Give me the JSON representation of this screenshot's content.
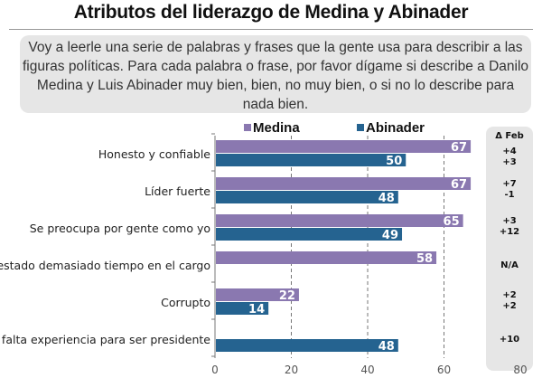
{
  "title": "Atributos del liderazgo de Medina y Abinader",
  "question": "Voy a leerle una serie de palabras y frases que la gente usa para describir a las figuras políticas. Para cada palabra o frase, por favor dígame si describe a Danilo Medina y Luis Abinader muy bien, bien, no muy bien, o si no lo describe para nada bien.",
  "chart_data": {
    "type": "bar",
    "orientation": "horizontal",
    "categories": [
      "Honesto y confiable",
      "Líder fuerte",
      "Se preocupa por gente como yo",
      "Ha estado demasiado tiempo en el cargo",
      "Corrupto",
      "Le falta experiencia para ser presidente"
    ],
    "series": [
      {
        "name": "Medina",
        "color": "#8a78b0",
        "values": [
          67,
          67,
          65,
          58,
          22,
          null
        ]
      },
      {
        "name": "Abinader",
        "color": "#256390",
        "values": [
          50,
          48,
          49,
          null,
          14,
          48
        ]
      }
    ],
    "xlim": [
      0,
      80
    ],
    "xticks": [
      "0",
      "20",
      "40",
      "60",
      "80"
    ],
    "grid": "dashed vertical",
    "legend": "top"
  },
  "delta": {
    "header": "Δ Feb",
    "rows": [
      [
        "+4",
        "+3"
      ],
      [
        "+7",
        "-1"
      ],
      [
        "+3",
        "+12"
      ],
      [
        "N/A"
      ],
      [
        "+2",
        "+2"
      ],
      [
        "+10"
      ]
    ]
  }
}
